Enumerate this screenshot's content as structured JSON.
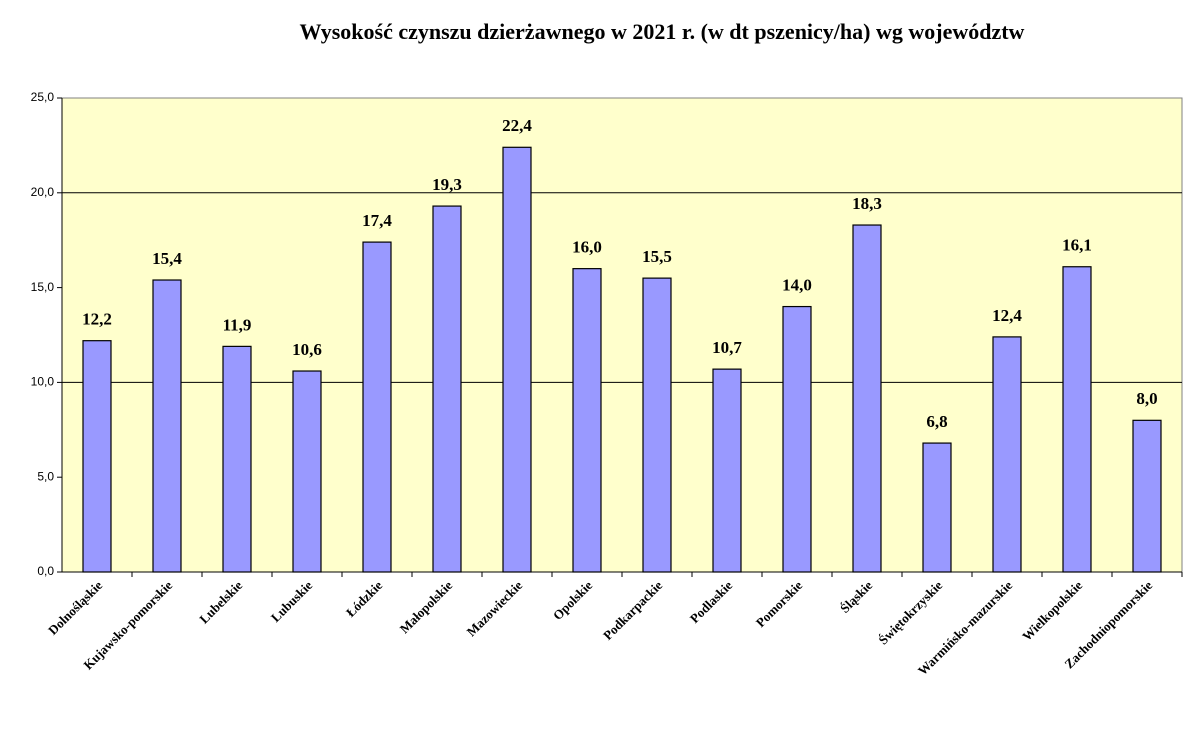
{
  "chart_data": {
    "type": "bar",
    "title": "Wysokość czynszu dzierżawnego w 2021 r. (w dt pszenicy/ha) wg województw",
    "categories": [
      "Dolnośląskie",
      "Kujawsko-pomorskie",
      "Lubelskie",
      "Lubuskie",
      "Łódzkie",
      "Małopolskie",
      "Mazowieckie",
      "Opolskie",
      "Podkarpackie",
      "Podlaskie",
      "Pomorskie",
      "Śląskie",
      "Świętokrzyskie",
      "Warmińsko-mazurskie",
      "Wielkopolskie",
      "Zachodniopomorskie"
    ],
    "values": [
      12.2,
      15.4,
      11.9,
      10.6,
      17.4,
      19.3,
      22.4,
      16.0,
      15.5,
      10.7,
      14.0,
      18.3,
      6.8,
      12.4,
      16.1,
      8.0
    ],
    "value_labels": [
      "12,2",
      "15,4",
      "11,9",
      "10,6",
      "17,4",
      "19,3",
      "22,4",
      "16,0",
      "15,5",
      "10,7",
      "14,0",
      "18,3",
      "6,8",
      "12,4",
      "16,1",
      "8,0"
    ],
    "color": "#9999ff",
    "ylim": [
      0,
      25
    ],
    "yticks": [
      {
        "value": 0,
        "label": "0,0"
      },
      {
        "value": 5,
        "label": "5,0"
      },
      {
        "value": 10,
        "label": "10,0"
      },
      {
        "value": 15,
        "label": "15,0"
      },
      {
        "value": 20,
        "label": "20,0"
      },
      {
        "value": 25,
        "label": "25,0"
      }
    ],
    "ygrid": [
      10,
      20
    ]
  }
}
